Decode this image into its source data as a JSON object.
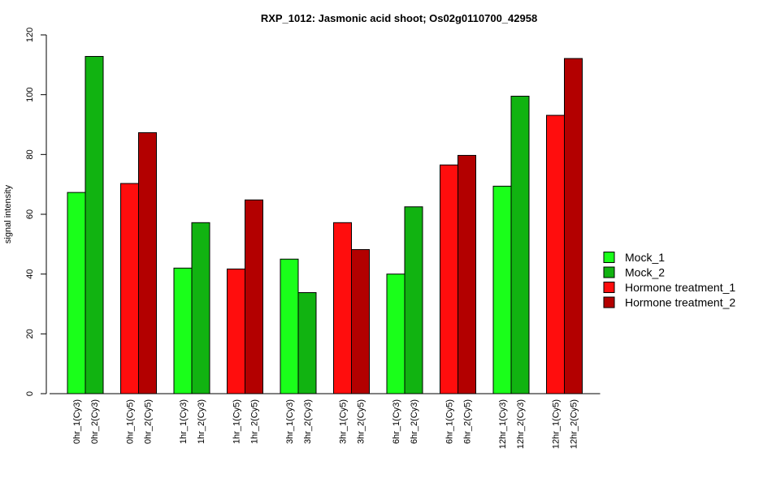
{
  "chart_data": {
    "type": "bar",
    "title": "RXP_1012: Jasmonic acid shoot; Os02g0110700_42958",
    "ylabel": "signal intensity",
    "xlabel": "",
    "ylim": [
      0,
      120
    ],
    "yticks": [
      0,
      20,
      40,
      60,
      80,
      100,
      120
    ],
    "grid": false,
    "legend_position": "right",
    "legend": [
      {
        "name": "Mock_1",
        "color": "#1aff1a"
      },
      {
        "name": "Mock_2",
        "color": "#11b311"
      },
      {
        "name": "Hormone treatment_1",
        "color": "#ff0d0d"
      },
      {
        "name": "Hormone treatment_2",
        "color": "#b30000"
      }
    ],
    "groups": [
      {
        "bars": [
          {
            "label": "0hr_1(Cy3)",
            "value": 67.3,
            "series": 0
          },
          {
            "label": "0hr_2(Cy3)",
            "value": 112.8,
            "series": 1
          }
        ]
      },
      {
        "bars": [
          {
            "label": "0hr_1(Cy5)",
            "value": 70.3,
            "series": 2
          },
          {
            "label": "0hr_2(Cy5)",
            "value": 87.3,
            "series": 3
          }
        ]
      },
      {
        "bars": [
          {
            "label": "1hr_1(Cy3)",
            "value": 42.0,
            "series": 0
          },
          {
            "label": "1hr_2(Cy3)",
            "value": 57.2,
            "series": 1
          }
        ]
      },
      {
        "bars": [
          {
            "label": "1hr_1(Cy5)",
            "value": 41.7,
            "series": 2
          },
          {
            "label": "1hr_2(Cy5)",
            "value": 64.8,
            "series": 3
          }
        ]
      },
      {
        "bars": [
          {
            "label": "3hr_1(Cy3)",
            "value": 45.0,
            "series": 0
          },
          {
            "label": "3hr_2(Cy3)",
            "value": 33.8,
            "series": 1
          }
        ]
      },
      {
        "bars": [
          {
            "label": "3hr_1(Cy5)",
            "value": 57.2,
            "series": 2
          },
          {
            "label": "3hr_2(Cy5)",
            "value": 48.2,
            "series": 3
          }
        ]
      },
      {
        "bars": [
          {
            "label": "6hr_1(Cy3)",
            "value": 40.0,
            "series": 0
          },
          {
            "label": "6hr_2(Cy3)",
            "value": 62.5,
            "series": 1
          }
        ]
      },
      {
        "bars": [
          {
            "label": "6hr_1(Cy5)",
            "value": 76.5,
            "series": 2
          },
          {
            "label": "6hr_2(Cy5)",
            "value": 79.7,
            "series": 3
          }
        ]
      },
      {
        "bars": [
          {
            "label": "12hr_1(Cy3)",
            "value": 69.4,
            "series": 0
          },
          {
            "label": "12hr_2(Cy3)",
            "value": 99.5,
            "series": 1
          }
        ]
      },
      {
        "bars": [
          {
            "label": "12hr_1(Cy5)",
            "value": 93.1,
            "series": 2
          },
          {
            "label": "12hr_2(Cy5)",
            "value": 112.1,
            "series": 3
          }
        ]
      }
    ]
  }
}
